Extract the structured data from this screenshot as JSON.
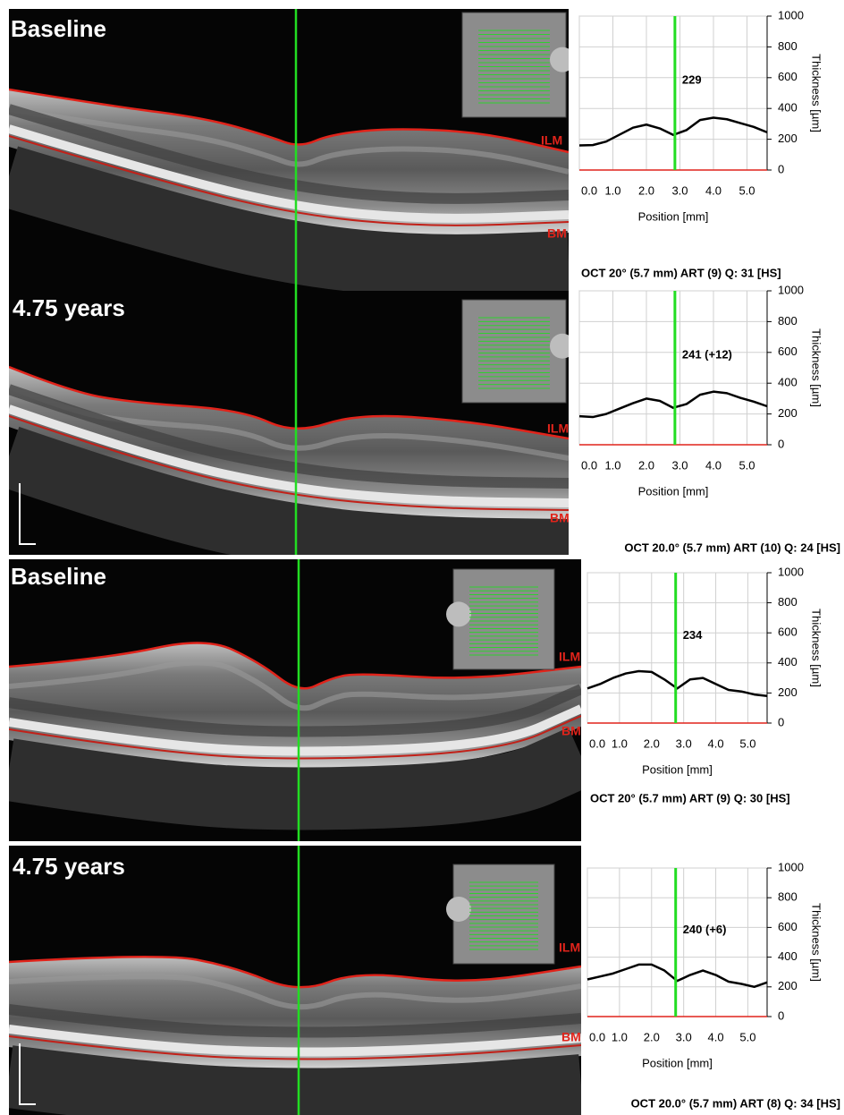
{
  "panels": [
    {
      "label": "Baseline",
      "ilm": "ILM",
      "bm": "BM",
      "caption": "OCT 20° (5.7 mm) ART (9) Q: 31 [HS]"
    },
    {
      "label": "4.75 years",
      "ilm": "ILM",
      "bm": "BM",
      "caption": "OCT 20.0° (5.7 mm) ART (10) Q: 24 [HS]"
    },
    {
      "label": "Baseline",
      "ilm": "ILM",
      "bm": "BM",
      "caption": "OCT 20° (5.7 mm) ART (9) Q: 30 [HS]"
    },
    {
      "label": "4.75 years",
      "ilm": "ILM",
      "bm": "BM",
      "caption": "OCT 20.0° (5.7 mm) ART (8) Q: 34 [HS]"
    }
  ],
  "chart_data": [
    {
      "type": "line",
      "xlabel": "Position [mm]",
      "ylabel": "Thickness [µm]",
      "x": [
        0,
        0.4,
        0.8,
        1.2,
        1.6,
        2.0,
        2.4,
        2.8,
        3.2,
        3.6,
        4.0,
        4.4,
        4.8,
        5.2,
        5.6
      ],
      "series": [
        {
          "color": "#000000",
          "values": [
            160,
            162,
            185,
            230,
            275,
            295,
            270,
            228,
            260,
            325,
            340,
            330,
            305,
            280,
            245
          ]
        }
      ],
      "marker": {
        "x": 2.85,
        "label": "229",
        "color": "#22dd22"
      },
      "xlim": [
        0,
        5.6
      ],
      "ylim": [
        0,
        1000
      ],
      "xticks": [
        {
          "value": 0,
          "label": "0.0"
        },
        {
          "value": 1,
          "label": "1.0"
        },
        {
          "value": 2,
          "label": "2.0"
        },
        {
          "value": 3,
          "label": "3.0"
        },
        {
          "value": 4,
          "label": "4.0"
        },
        {
          "value": 5,
          "label": "5.0"
        }
      ],
      "yticks": [
        0,
        200,
        400,
        600,
        800,
        1000
      ],
      "grid": true
    },
    {
      "type": "line",
      "xlabel": "Position [mm]",
      "ylabel": "Thickness [µm]",
      "x": [
        0,
        0.4,
        0.8,
        1.2,
        1.6,
        2.0,
        2.4,
        2.8,
        3.2,
        3.6,
        4.0,
        4.4,
        4.8,
        5.2,
        5.6
      ],
      "series": [
        {
          "color": "#000000",
          "values": [
            185,
            180,
            200,
            235,
            270,
            300,
            285,
            240,
            265,
            325,
            345,
            335,
            305,
            280,
            250
          ]
        }
      ],
      "marker": {
        "x": 2.85,
        "label": "241 (+12)",
        "color": "#22dd22"
      },
      "xlim": [
        0,
        5.6
      ],
      "ylim": [
        0,
        1000
      ],
      "xticks": [
        {
          "value": 0,
          "label": "0.0"
        },
        {
          "value": 1,
          "label": "1.0"
        },
        {
          "value": 2,
          "label": "2.0"
        },
        {
          "value": 3,
          "label": "3.0"
        },
        {
          "value": 4,
          "label": "4.0"
        },
        {
          "value": 5,
          "label": "5.0"
        }
      ],
      "yticks": [
        0,
        200,
        400,
        600,
        800,
        1000
      ],
      "grid": true
    },
    {
      "type": "line",
      "xlabel": "Position [mm]",
      "ylabel": "Thickness [µm]",
      "x": [
        0,
        0.4,
        0.8,
        1.2,
        1.6,
        2.0,
        2.4,
        2.8,
        3.2,
        3.6,
        4.0,
        4.4,
        4.8,
        5.2,
        5.6
      ],
      "series": [
        {
          "color": "#000000",
          "values": [
            230,
            260,
            300,
            330,
            345,
            340,
            290,
            230,
            290,
            300,
            260,
            220,
            210,
            190,
            180
          ]
        }
      ],
      "marker": {
        "x": 2.75,
        "label": "234",
        "color": "#22dd22"
      },
      "xlim": [
        0,
        5.6
      ],
      "ylim": [
        0,
        1000
      ],
      "xticks": [
        {
          "value": 0,
          "label": "0.0"
        },
        {
          "value": 1,
          "label": "1.0"
        },
        {
          "value": 2,
          "label": "2.0"
        },
        {
          "value": 3,
          "label": "3.0"
        },
        {
          "value": 4,
          "label": "4.0"
        },
        {
          "value": 5,
          "label": "5.0"
        }
      ],
      "yticks": [
        0,
        200,
        400,
        600,
        800,
        1000
      ],
      "grid": true
    },
    {
      "type": "line",
      "xlabel": "Position [mm]",
      "ylabel": "Thickness [µm]",
      "x": [
        0,
        0.4,
        0.8,
        1.2,
        1.6,
        2.0,
        2.4,
        2.8,
        3.2,
        3.6,
        4.0,
        4.4,
        4.8,
        5.2,
        5.6
      ],
      "series": [
        {
          "color": "#000000",
          "values": [
            250,
            270,
            290,
            320,
            350,
            350,
            310,
            240,
            280,
            310,
            280,
            235,
            220,
            200,
            230
          ]
        }
      ],
      "marker": {
        "x": 2.75,
        "label": "240 (+6)",
        "color": "#22dd22"
      },
      "xlim": [
        0,
        5.6
      ],
      "ylim": [
        0,
        1000
      ],
      "xticks": [
        {
          "value": 0,
          "label": "0.0"
        },
        {
          "value": 1,
          "label": "1.0"
        },
        {
          "value": 2,
          "label": "2.0"
        },
        {
          "value": 3,
          "label": "3.0"
        },
        {
          "value": 4,
          "label": "4.0"
        },
        {
          "value": 5,
          "label": "5.0"
        }
      ],
      "yticks": [
        0,
        200,
        400,
        600,
        800,
        1000
      ],
      "grid": true
    }
  ]
}
